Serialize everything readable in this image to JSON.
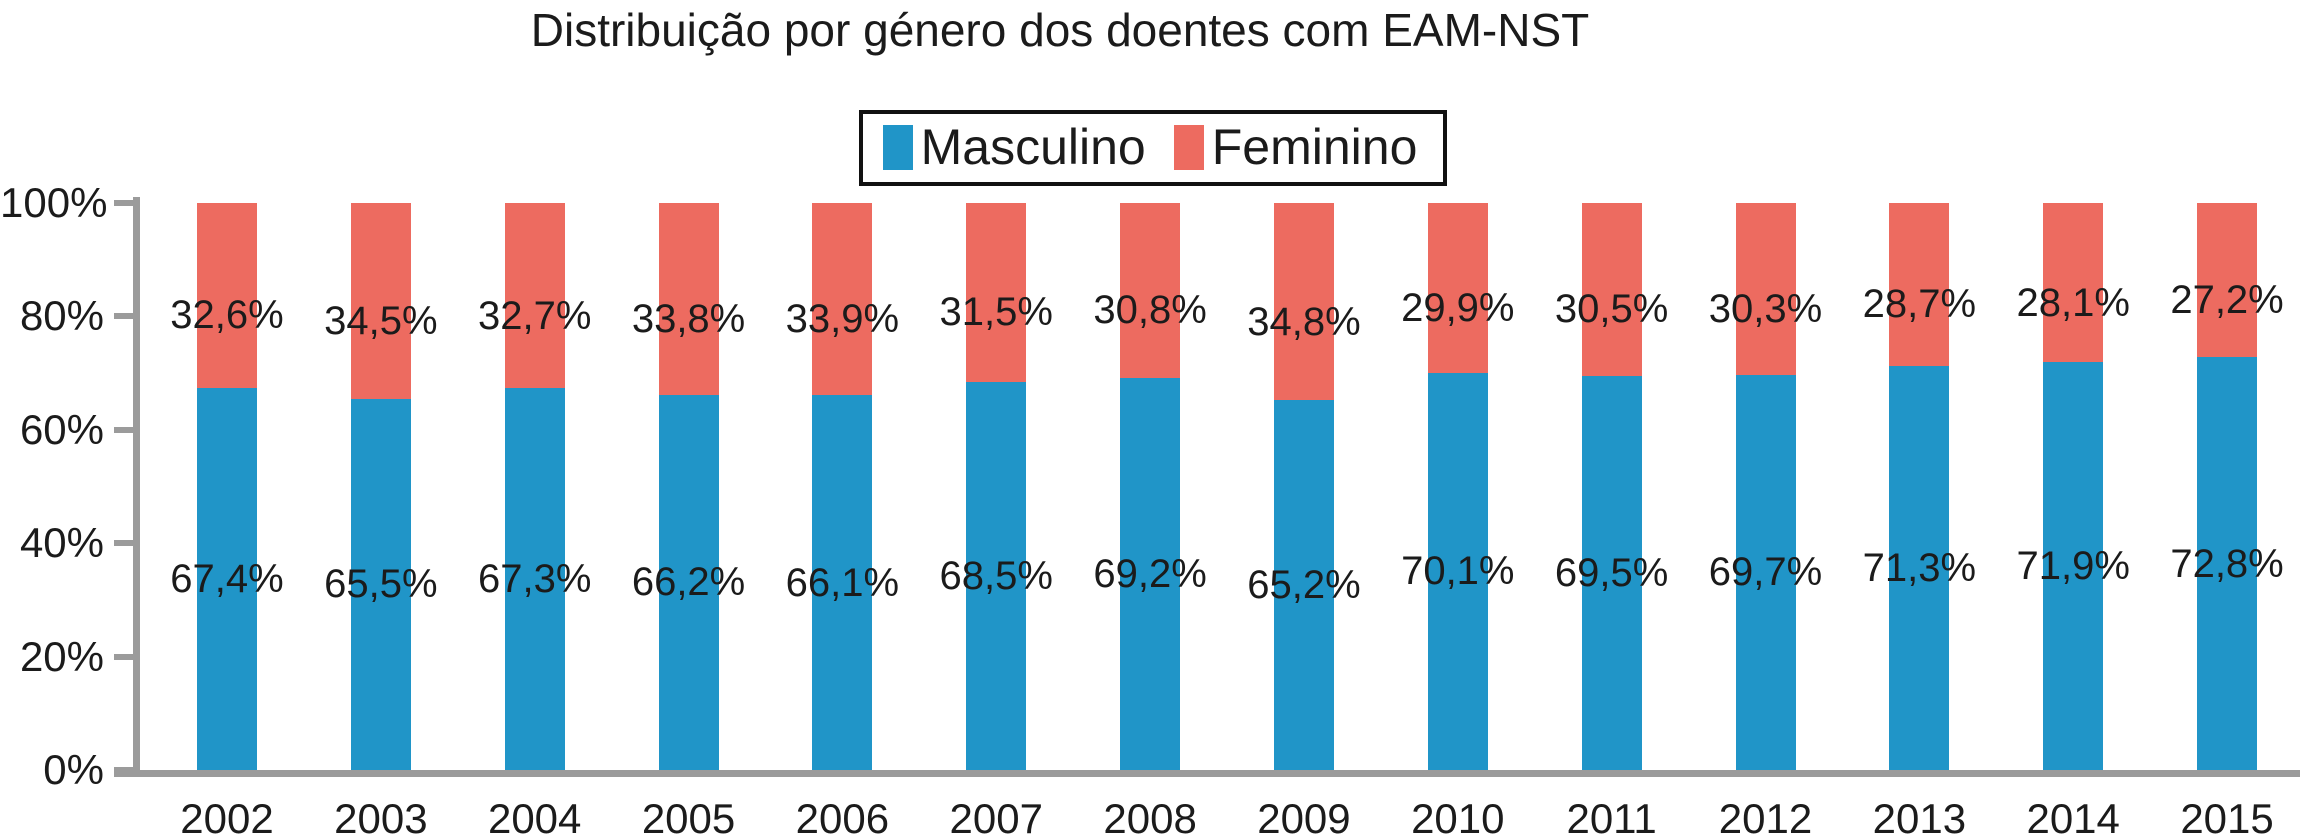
{
  "chart_data": {
    "type": "bar",
    "stacked": true,
    "title": "Distribuição por género dos doentes com EAM-NST",
    "categories": [
      "2002",
      "2003",
      "2004",
      "2005",
      "2006",
      "2007",
      "2008",
      "2009",
      "2010",
      "2011",
      "2012",
      "2013",
      "2014",
      "2015"
    ],
    "series": [
      {
        "name": "Masculino",
        "color": "#2095C8",
        "values": [
          67.4,
          65.5,
          67.3,
          66.2,
          66.1,
          68.5,
          69.2,
          65.2,
          70.1,
          69.5,
          69.7,
          71.3,
          71.9,
          72.8
        ],
        "labels": [
          "67,4%",
          "65,5%",
          "67,3%",
          "66,2%",
          "66,1%",
          "68,5%",
          "69,2%",
          "65,2%",
          "70,1%",
          "69,5%",
          "69,7%",
          "71,3%",
          "71,9%",
          "72,8%"
        ]
      },
      {
        "name": "Feminino",
        "color": "#ED6B60",
        "values": [
          32.6,
          34.5,
          32.7,
          33.8,
          33.9,
          31.5,
          30.8,
          34.8,
          29.9,
          30.5,
          30.3,
          28.7,
          28.1,
          27.2
        ],
        "labels": [
          "32,6%",
          "34,5%",
          "32,7%",
          "33,8%",
          "33,9%",
          "31,5%",
          "30,8%",
          "34,8%",
          "29,9%",
          "30,5%",
          "30,3%",
          "28,7%",
          "28,1%",
          "27,2%"
        ]
      }
    ],
    "y_ticks": [
      "0%",
      "20%",
      "40%",
      "60%",
      "80%",
      "100%"
    ],
    "ylim": [
      0,
      100
    ],
    "xlabel": "",
    "ylabel": "",
    "grid": false,
    "legend_position": "top-center",
    "axis_color": "#9b9b9b",
    "text_color": "#1b1b1b"
  }
}
